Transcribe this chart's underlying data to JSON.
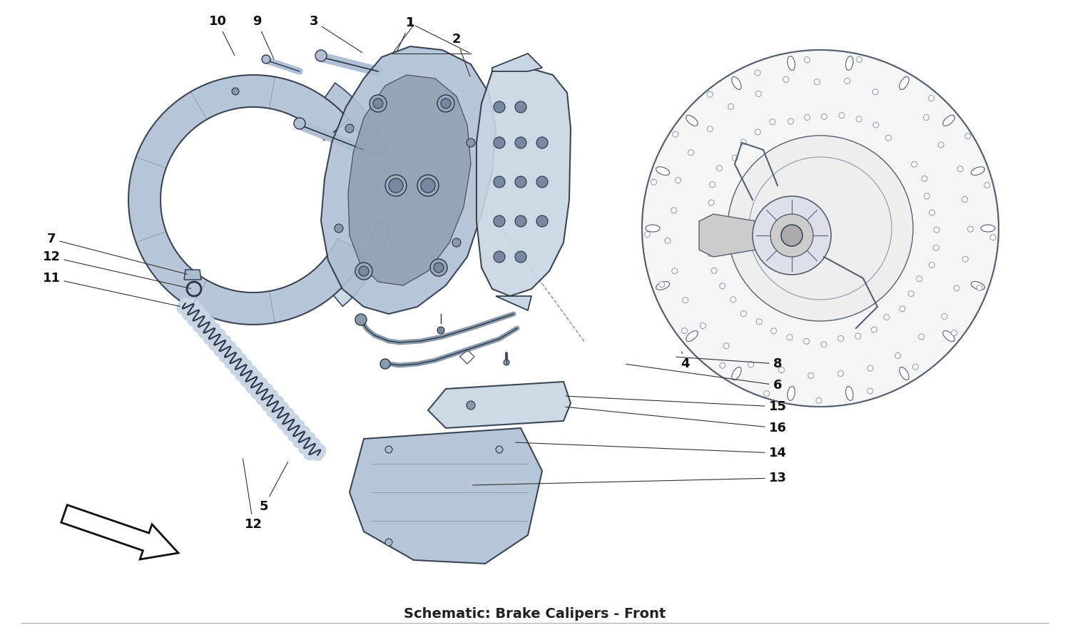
{
  "title": "Schematic: Brake Calipers - Front",
  "bg_color": "#ffffff",
  "blue_fill": "#b0c0d4",
  "blue_fill2": "#c8d5e3",
  "stroke_dark": "#2a3545",
  "stroke_mid": "#556070",
  "stroke_light": "#8899aa",
  "label_color": "#111111",
  "arrow_fill": "#ffffff",
  "arrow_stroke": "#111111",
  "figsize": [
    15.0,
    8.9
  ],
  "dpi": 100,
  "annotations": [
    [
      1,
      575,
      32,
      555,
      75
    ],
    [
      2,
      640,
      55,
      660,
      110
    ],
    [
      3,
      440,
      30,
      510,
      75
    ],
    [
      9,
      360,
      30,
      385,
      85
    ],
    [
      10,
      305,
      30,
      330,
      80
    ],
    [
      7,
      72,
      335,
      265,
      385
    ],
    [
      12,
      72,
      360,
      270,
      405
    ],
    [
      11,
      72,
      390,
      255,
      430
    ],
    [
      4,
      960,
      510,
      955,
      490
    ],
    [
      8,
      1090,
      510,
      945,
      500
    ],
    [
      6,
      1090,
      540,
      875,
      510
    ],
    [
      15,
      1090,
      570,
      790,
      555
    ],
    [
      16,
      1090,
      600,
      790,
      570
    ],
    [
      14,
      1090,
      635,
      720,
      620
    ],
    [
      13,
      1090,
      670,
      660,
      680
    ],
    [
      5,
      370,
      710,
      405,
      645
    ],
    [
      12,
      355,
      735,
      340,
      640
    ]
  ]
}
